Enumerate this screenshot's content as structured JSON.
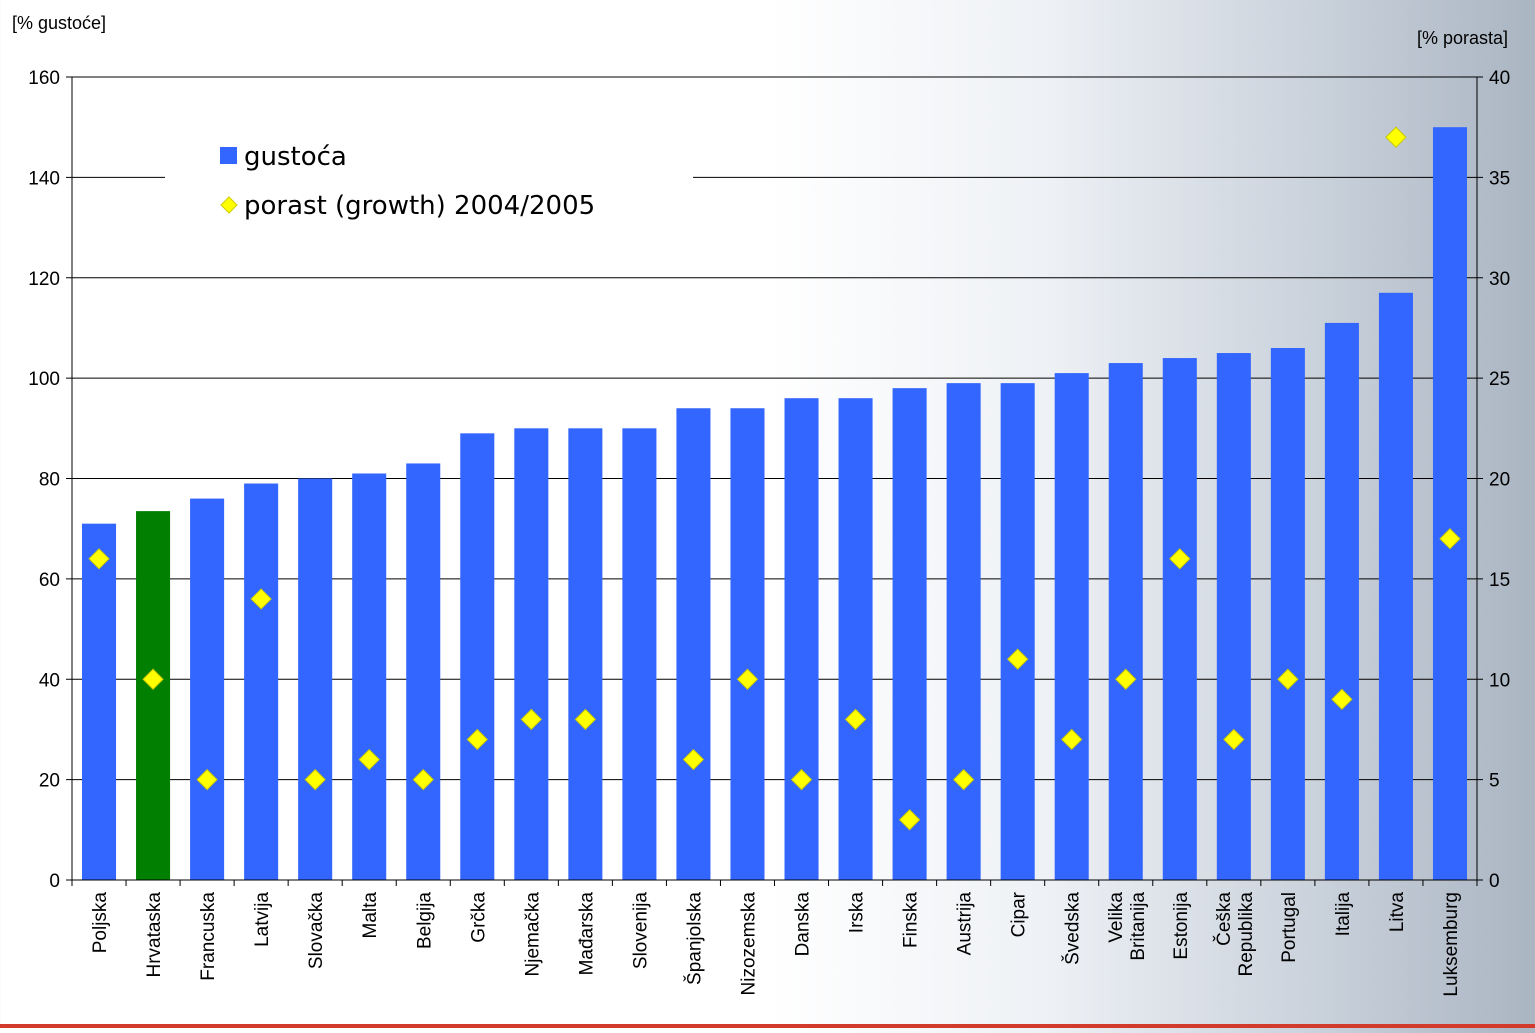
{
  "chart_data": {
    "type": "bar",
    "left_axis_label": "[% gustoće]",
    "right_axis_label": "[% porasta]",
    "ylim_left": [
      0,
      160
    ],
    "ylim_right": [
      0,
      40
    ],
    "yticks_left": [
      "0",
      "20",
      "40",
      "60",
      "80",
      "100",
      "120",
      "140",
      "160"
    ],
    "yticks_right": [
      "0",
      "5",
      "10",
      "15",
      "20",
      "25",
      "30",
      "35",
      "40"
    ],
    "grid": true,
    "legend_position": "top-left",
    "categories": [
      [
        "Poljska"
      ],
      [
        "Hrvataska"
      ],
      [
        "Francuska"
      ],
      [
        "Latvija"
      ],
      [
        "Slovačka"
      ],
      [
        "Malta"
      ],
      [
        "Belgija"
      ],
      [
        "Grčka"
      ],
      [
        "Njemačka"
      ],
      [
        "Mađarska"
      ],
      [
        "Slovenija"
      ],
      [
        "Španjolska"
      ],
      [
        "Nizozemska"
      ],
      [
        "Danska"
      ],
      [
        "Irska"
      ],
      [
        "Finska"
      ],
      [
        "Austrija"
      ],
      [
        "Cipar"
      ],
      [
        "Švedska"
      ],
      [
        "Velika",
        "Britanija"
      ],
      [
        "Estonija"
      ],
      [
        "Češka",
        "Republika"
      ],
      [
        "Portugal"
      ],
      [
        "Italija"
      ],
      [
        "Litva"
      ],
      [
        "Luksemburg"
      ]
    ],
    "series": [
      {
        "name": "gustoća",
        "axis": "left",
        "color": "#3366ff",
        "highlight_index": 1,
        "highlight_color": "#007f00",
        "values": [
          71,
          73.5,
          76,
          79,
          80,
          81,
          83,
          89,
          90,
          90,
          90,
          94,
          94,
          96,
          96,
          98,
          99,
          99,
          101,
          103,
          104,
          105,
          106,
          111,
          117,
          150
        ]
      },
      {
        "name": "porast (growth) 2004/2005",
        "axis": "right",
        "color": "#ffff00",
        "values": [
          16,
          10,
          5,
          14,
          5,
          6,
          5,
          7,
          8,
          8,
          null,
          6,
          10,
          5,
          8,
          3,
          5,
          11,
          7,
          10,
          16,
          7,
          10,
          9,
          37,
          17
        ]
      }
    ]
  }
}
